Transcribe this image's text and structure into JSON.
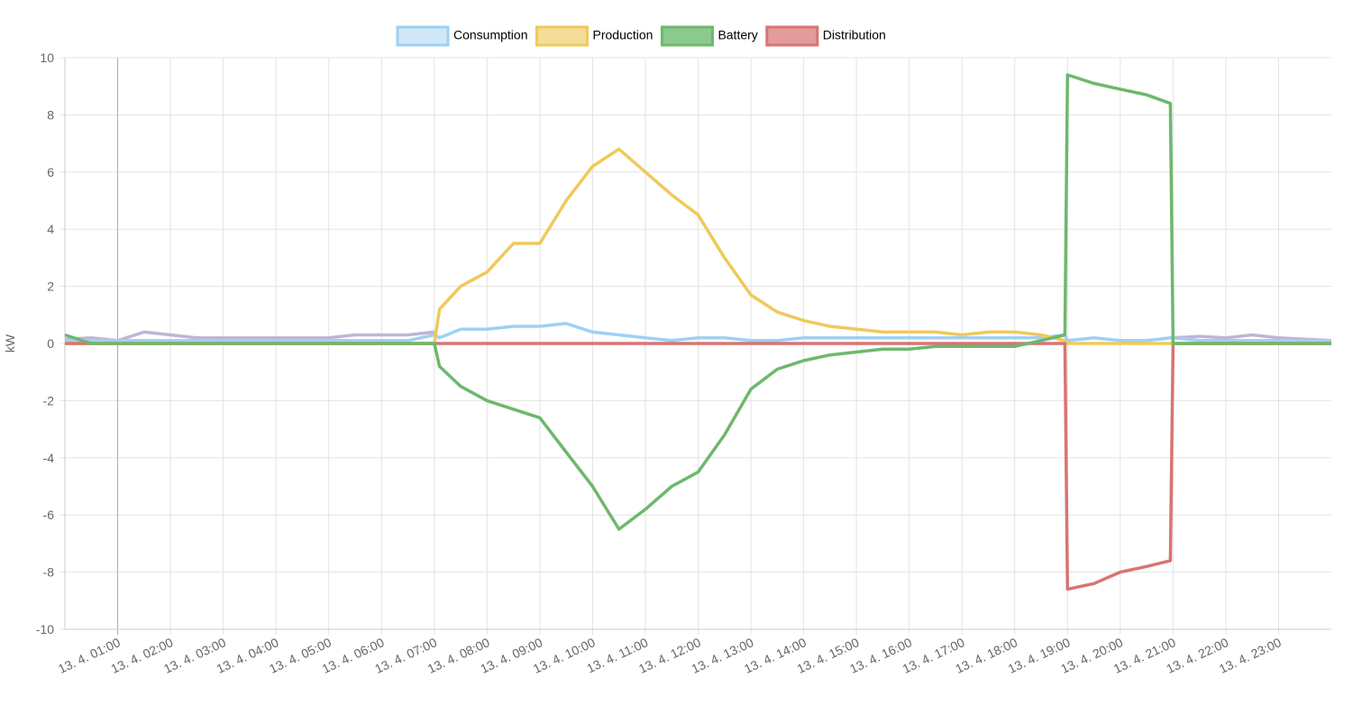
{
  "chart_data": {
    "type": "line",
    "y_label": "kW",
    "legend": "top",
    "grid": true,
    "xlim": [
      0,
      24
    ],
    "ylim": [
      -10,
      10
    ],
    "yticks": [
      -10,
      -8,
      -6,
      -4,
      -2,
      0,
      2,
      4,
      6,
      8,
      10
    ],
    "xticks": [
      {
        "value": 1,
        "label": "13. 4. 01:00"
      },
      {
        "value": 2,
        "label": "13. 4. 02:00"
      },
      {
        "value": 3,
        "label": "13. 4. 03:00"
      },
      {
        "value": 4,
        "label": "13. 4. 04:00"
      },
      {
        "value": 5,
        "label": "13. 4. 05:00"
      },
      {
        "value": 6,
        "label": "13. 4. 06:00"
      },
      {
        "value": 7,
        "label": "13. 4. 07:00"
      },
      {
        "value": 8,
        "label": "13. 4. 08:00"
      },
      {
        "value": 9,
        "label": "13. 4. 09:00"
      },
      {
        "value": 10,
        "label": "13. 4. 10:00"
      },
      {
        "value": 11,
        "label": "13. 4. 11:00"
      },
      {
        "value": 12,
        "label": "13. 4. 12:00"
      },
      {
        "value": 13,
        "label": "13. 4. 13:00"
      },
      {
        "value": 14,
        "label": "13. 4. 14:00"
      },
      {
        "value": 15,
        "label": "13. 4. 15:00"
      },
      {
        "value": 16,
        "label": "13. 4. 16:00"
      },
      {
        "value": 17,
        "label": "13. 4. 17:00"
      },
      {
        "value": 18,
        "label": "13. 4. 18:00"
      },
      {
        "value": 19,
        "label": "13. 4. 19:00"
      },
      {
        "value": 20,
        "label": "13. 4. 20:00"
      },
      {
        "value": 21,
        "label": "13. 4. 21:00"
      },
      {
        "value": 22,
        "label": "13. 4. 22:00"
      },
      {
        "value": 23,
        "label": "13. 4. 23:00"
      }
    ],
    "x": [
      0,
      0.5,
      1,
      1.5,
      2,
      2.5,
      3,
      3.5,
      4,
      4.5,
      5,
      5.5,
      6,
      6.5,
      7,
      7.1,
      7.5,
      8,
      8.5,
      9,
      9.5,
      10,
      10.5,
      11,
      11.5,
      12,
      12.5,
      13,
      13.5,
      14,
      14.5,
      15,
      15.5,
      16,
      16.5,
      17,
      17.5,
      18,
      18.5,
      18.95,
      19,
      19.5,
      20,
      20.5,
      20.95,
      21,
      21.5,
      22,
      22.5,
      23,
      23.5,
      24
    ],
    "series": [
      {
        "name": "Consumption",
        "color": "#9fd0f2",
        "fill": "#cfe7f9",
        "values": [
          0.1,
          0.1,
          0.1,
          0.1,
          0.1,
          0.1,
          0.1,
          0.1,
          0.1,
          0.1,
          0.1,
          0.1,
          0.1,
          0.1,
          0.3,
          0.2,
          0.5,
          0.5,
          0.6,
          0.6,
          0.7,
          0.4,
          0.3,
          0.2,
          0.1,
          0.2,
          0.2,
          0.1,
          0.1,
          0.2,
          0.2,
          0.2,
          0.2,
          0.2,
          0.2,
          0.2,
          0.2,
          0.2,
          0.2,
          0.3,
          0.1,
          0.2,
          0.1,
          0.1,
          0.2,
          0.2,
          0.1,
          0.1,
          0.1,
          0.1,
          0.1,
          0.1
        ]
      },
      {
        "name": "Production",
        "color": "#efc95a",
        "fill": "#f5dd97",
        "values": [
          0,
          0,
          0,
          0,
          0,
          0,
          0,
          0,
          0,
          0,
          0,
          0,
          0,
          0,
          0,
          1.2,
          2.0,
          2.5,
          3.5,
          3.5,
          5.0,
          6.2,
          6.8,
          6.0,
          5.2,
          4.5,
          3.0,
          1.7,
          1.1,
          0.8,
          0.6,
          0.5,
          0.4,
          0.4,
          0.4,
          0.3,
          0.4,
          0.4,
          0.3,
          0.1,
          0,
          0,
          0,
          0,
          0,
          0,
          0,
          0,
          0,
          0,
          0,
          0
        ]
      },
      {
        "name": "Battery",
        "color": "#6db86d",
        "fill": "#8cc98c",
        "values": [
          0.3,
          0,
          0,
          0,
          0,
          0,
          0,
          0,
          0,
          0,
          0,
          0,
          0,
          0,
          0,
          -0.8,
          -1.5,
          -2.0,
          -2.3,
          -2.6,
          -3.8,
          -5.0,
          -6.5,
          -5.8,
          -5.0,
          -4.5,
          -3.2,
          -1.6,
          -0.9,
          -0.6,
          -0.4,
          -0.3,
          -0.2,
          -0.2,
          -0.1,
          -0.1,
          -0.1,
          -0.1,
          0.1,
          0.3,
          9.4,
          9.1,
          8.9,
          8.7,
          8.4,
          0,
          0,
          0,
          0,
          0,
          0,
          0
        ]
      },
      {
        "name": "Distribution",
        "color": "#d87474",
        "fill": "#e39b9b",
        "values": [
          0,
          0,
          0,
          0,
          0,
          0,
          0,
          0,
          0,
          0,
          0,
          0,
          0,
          0,
          0,
          0,
          0,
          0,
          0,
          0,
          0,
          0,
          0,
          0,
          0,
          0,
          0,
          0,
          0,
          0,
          0,
          0,
          0,
          0,
          0,
          0,
          0,
          0,
          0,
          0,
          -8.6,
          -8.4,
          -8.0,
          -7.8,
          -7.6,
          0,
          0,
          0,
          0,
          0,
          0,
          0
        ]
      },
      {
        "color": "#c0b4d6",
        "values": [
          0.15,
          0.2,
          0.1,
          0.4,
          0.3,
          0.2,
          0.2,
          0.2,
          0.2,
          0.2,
          0.2,
          0.3,
          0.3,
          0.3,
          0.4,
          null,
          null,
          null,
          null,
          null,
          null,
          null,
          null,
          null,
          null,
          null,
          null,
          null,
          null,
          null,
          null,
          null,
          null,
          null,
          null,
          null,
          null,
          null,
          null,
          null,
          null,
          null,
          null,
          null,
          null,
          0.2,
          0.25,
          0.2,
          0.3,
          0.2,
          0.15,
          0.1
        ]
      }
    ]
  }
}
